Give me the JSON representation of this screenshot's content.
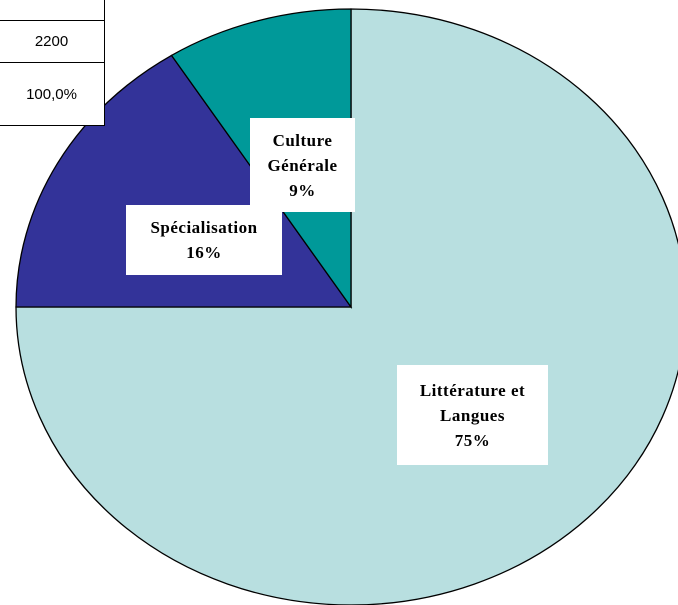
{
  "chart_data": {
    "type": "pie",
    "categories": [
      "Littérature et Langues",
      "Spécialisation",
      "Culture Générale"
    ],
    "values": [
      75,
      16,
      9
    ],
    "value_labels": [
      "75%",
      "16%",
      "9%"
    ],
    "colors": [
      "#b8dfe0",
      "#333399",
      "#009999"
    ]
  },
  "table": {
    "rows": [
      "2200",
      "100,0%"
    ]
  }
}
